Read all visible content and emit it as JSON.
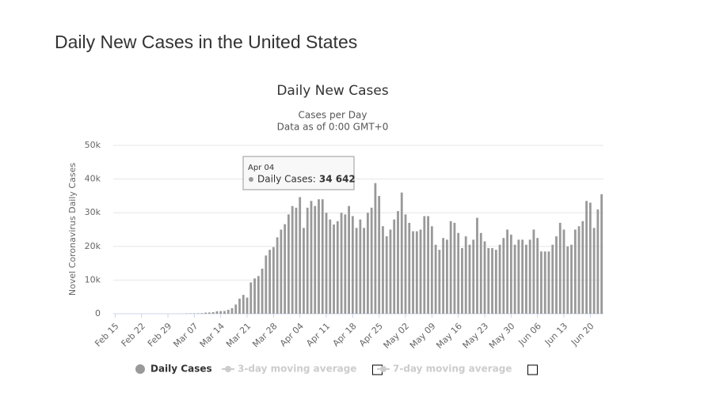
{
  "page": {
    "heading": "Daily New Cases in the United States"
  },
  "chart_data": {
    "type": "bar",
    "title": "Daily New Cases",
    "subtitle": [
      "Cases per Day",
      "Data as of 0:00 GMT+0"
    ],
    "y_label": "Novel Coronavirus Daily Cases",
    "categories": [
      "Feb 15",
      null,
      null,
      null,
      null,
      null,
      null,
      "Feb 22",
      null,
      null,
      null,
      null,
      null,
      null,
      "Feb 29",
      null,
      null,
      null,
      null,
      null,
      null,
      "Mar 07",
      null,
      null,
      null,
      null,
      null,
      null,
      "Mar 14",
      null,
      null,
      null,
      null,
      null,
      null,
      "Mar 21",
      null,
      null,
      null,
      null,
      null,
      null,
      "Mar 28",
      null,
      null,
      null,
      null,
      null,
      null,
      "Apr 04",
      null,
      null,
      null,
      null,
      null,
      null,
      "Apr 11",
      null,
      null,
      null,
      null,
      null,
      null,
      "Apr 18",
      null,
      null,
      null,
      null,
      null,
      null,
      "Apr 25",
      null,
      null,
      null,
      null,
      null,
      null,
      "May 02",
      null,
      null,
      null,
      null,
      null,
      null,
      "May 09",
      null,
      null,
      null,
      null,
      null,
      null,
      "May 16",
      null,
      null,
      null,
      null,
      null,
      null,
      "May 23",
      null,
      null,
      null,
      null,
      null,
      null,
      "May 30",
      null,
      null,
      null,
      null,
      null,
      null,
      "Jun 06",
      null,
      null,
      null,
      null,
      null,
      null,
      "Jun 13",
      null,
      null,
      null,
      null,
      null,
      null,
      "Jun 20",
      null,
      null,
      null
    ],
    "series": [
      {
        "name": "Daily Cases",
        "color": "#999999",
        "values": [
          0,
          0,
          0,
          0,
          0,
          0,
          0,
          0,
          1,
          0,
          0,
          0,
          1,
          1,
          6,
          8,
          23,
          20,
          24,
          74,
          103,
          116,
          130,
          185,
          334,
          367,
          474,
          750,
          778,
          817,
          1180,
          1650,
          2740,
          4500,
          5600,
          4800,
          9300,
          10500,
          11200,
          13400,
          17300,
          19000,
          19800,
          22700,
          25000,
          26600,
          29500,
          32000,
          31500,
          34642,
          25500,
          31500,
          33500,
          32000,
          34000,
          34000,
          30000,
          28000,
          26500,
          27500,
          30000,
          29500,
          32000,
          29000,
          25500,
          28000,
          25500,
          30000,
          31500,
          38800,
          35000,
          26000,
          23000,
          25000,
          28000,
          30500,
          36000,
          29500,
          27000,
          24500,
          24500,
          25000,
          29000,
          29000,
          26000,
          20500,
          19000,
          22500,
          22000,
          27500,
          27000,
          24000,
          19500,
          23000,
          20500,
          22000,
          28500,
          24000,
          21500,
          19500,
          19500,
          19000,
          20500,
          22500,
          25000,
          23500,
          20500,
          22000,
          22000,
          20500,
          22000,
          25000,
          22500,
          18500,
          18500,
          18500,
          20500,
          23000,
          27000,
          25000,
          20000,
          20500,
          25000,
          26000,
          27500,
          33500,
          33000,
          25500,
          31000,
          35500
        ]
      },
      {
        "name": "3-day moving average",
        "color": "#cccccc",
        "visible": false
      },
      {
        "name": "7-day moving average",
        "color": "#cccccc",
        "visible": false
      }
    ],
    "ylim": [
      0,
      50000
    ],
    "yticks": [
      0,
      {
        "value": 10000,
        "label": "10k"
      },
      {
        "value": 20000,
        "label": "20k"
      },
      {
        "value": 30000,
        "label": "30k"
      },
      {
        "value": 40000,
        "label": "40k"
      },
      {
        "value": 50000,
        "label": "50k"
      }
    ],
    "grid": true,
    "tooltip": {
      "header": "Apr 04",
      "label": "Daily Cases:",
      "value_label": "34 642"
    }
  }
}
